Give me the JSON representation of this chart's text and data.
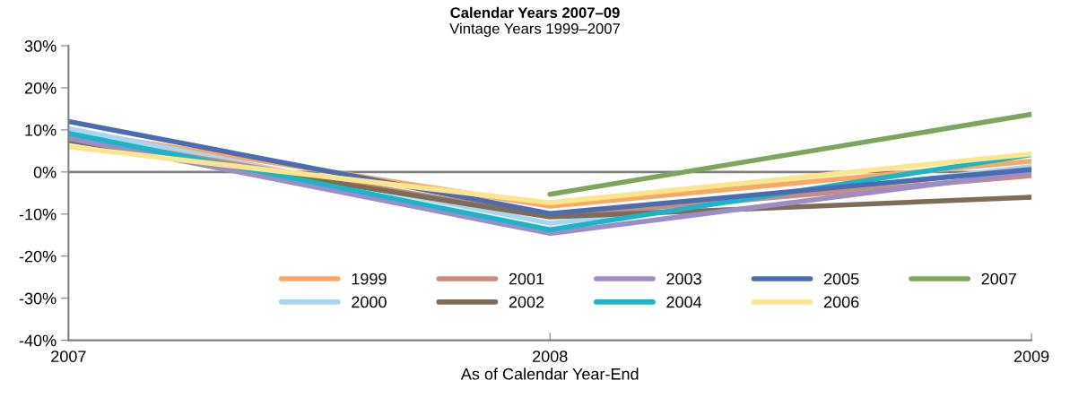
{
  "chart_data": {
    "type": "line",
    "title": "Calendar Years 2007–09",
    "subtitle": "Vintage Years 1999–2007",
    "xlabel": "As of Calendar Year-End",
    "x": [
      2007,
      2008,
      2009
    ],
    "xlim": [
      2007,
      2009
    ],
    "xticks": [
      2007,
      2008,
      2009
    ],
    "ylim": [
      -40,
      30
    ],
    "yticks": [
      {
        "value": -40,
        "label": "-40%"
      },
      {
        "value": -30,
        "label": "-30%"
      },
      {
        "value": -20,
        "label": "-20%"
      },
      {
        "value": -10,
        "label": "-10%"
      },
      {
        "value": 0,
        "label": "0%"
      },
      {
        "value": 10,
        "label": "10%"
      },
      {
        "value": 20,
        "label": "20%"
      },
      {
        "value": 30,
        "label": "30%"
      }
    ],
    "grid": false,
    "legend": "bottom right",
    "marker": "none",
    "line_style": "solid",
    "ref_lines": [
      {
        "axis": "y",
        "value": 0,
        "color": "#808080"
      }
    ],
    "series": [
      {
        "name": "1999",
        "color": "#f9a866",
        "values": [
          9.8,
          -8.1,
          2.6
        ]
      },
      {
        "name": "2000",
        "color": "#a9d4f2",
        "values": [
          10.3,
          -12.2,
          1.3
        ]
      },
      {
        "name": "2001",
        "color": "#c98b80",
        "values": [
          8.5,
          -10.5,
          -0.9
        ]
      },
      {
        "name": "2002",
        "color": "#7e6c56",
        "values": [
          7.5,
          -10.7,
          -6.0
        ]
      },
      {
        "name": "2003",
        "color": "#9d8cc6",
        "values": [
          8.0,
          -14.6,
          0.0
        ]
      },
      {
        "name": "2004",
        "color": "#1bb5c9",
        "values": [
          9.2,
          -13.7,
          4.1
        ]
      },
      {
        "name": "2005",
        "color": "#4b6cb0",
        "values": [
          12.0,
          -9.9,
          0.6
        ]
      },
      {
        "name": "2006",
        "color": "#fbe68b",
        "values": [
          6.0,
          -7.3,
          4.3
        ]
      },
      {
        "name": "2007",
        "color": "#7da65a",
        "x": [
          2008,
          2009
        ],
        "values": [
          -5.3,
          13.7
        ]
      }
    ]
  }
}
